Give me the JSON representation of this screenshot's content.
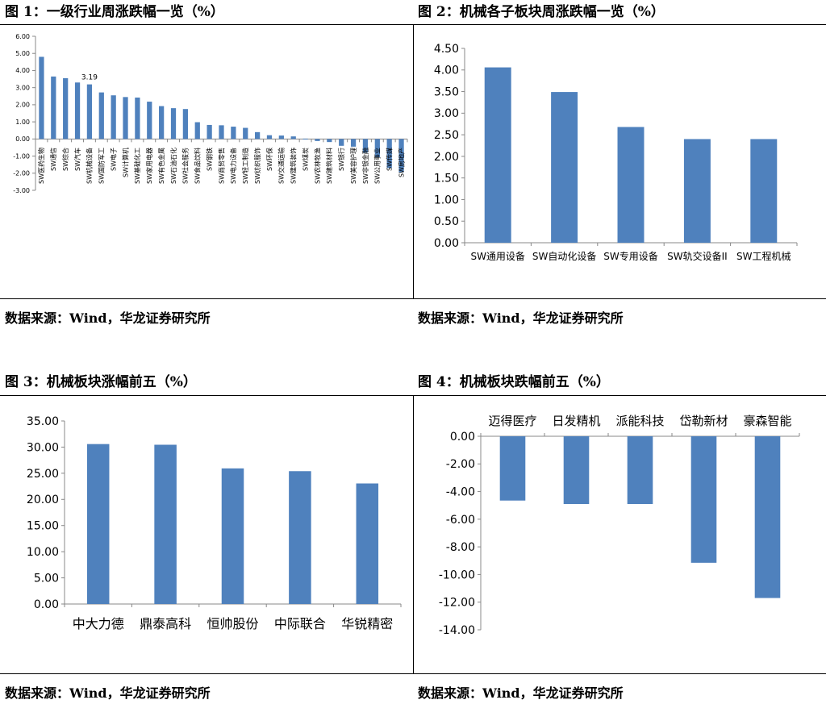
{
  "figures": [
    {
      "title": "图 1：一级行业周涨跌幅一览（%）",
      "source": "数据来源：Wind，华龙证券研究所"
    },
    {
      "title": "图 2：机械各子板块周涨跌幅一览（%）",
      "source": "数据来源：Wind，华龙证券研究所"
    },
    {
      "title": "图 3：机械板块涨幅前五（%）",
      "source": "数据来源：Wind，华龙证券研究所"
    },
    {
      "title": "图 4：机械板块跌幅前五（%）",
      "source": "数据来源：Wind，华龙证券研究所"
    }
  ],
  "chart_data": [
    {
      "type": "bar",
      "categories": [
        "SW医药生物",
        "SW通信",
        "SW综合",
        "SW汽车",
        "SW机械设备",
        "SW国防军工",
        "SW电子",
        "SW计算机",
        "SW基础化工",
        "SW家用电器",
        "SW有色金属",
        "SW石油石化",
        "SW社会服务",
        "SW食品饮料",
        "SW钢铁",
        "SW商贸零售",
        "SW电力设备",
        "SW轻工制造",
        "SW纺织服饰",
        "SW环保",
        "SW交通运输",
        "SW建筑装饰",
        "SW煤炭",
        "SW农林牧渔",
        "SW建筑材料",
        "SW银行",
        "SW美容护理",
        "SW非银金融",
        "SW公用事业",
        "SW传媒",
        "SW房地产"
      ],
      "values": [
        4.8,
        3.65,
        3.55,
        3.3,
        3.19,
        2.72,
        2.55,
        2.45,
        2.42,
        2.18,
        1.92,
        1.8,
        1.75,
        0.98,
        0.82,
        0.8,
        0.72,
        0.65,
        0.4,
        0.22,
        0.2,
        0.15,
        0.02,
        -0.12,
        -0.18,
        -0.4,
        -0.45,
        -0.8,
        -1.08,
        -1.7,
        -1.95
      ],
      "ylim": [
        -3,
        6
      ],
      "yticks": [
        "-3.00",
        "-2.00",
        "-1.00",
        "0.00",
        "1.00",
        "2.00",
        "3.00",
        "4.00",
        "5.00",
        "6.00"
      ],
      "annotations": [
        {
          "index": 4,
          "text": "3.19"
        }
      ],
      "grid": false,
      "color": "#4f81bd"
    },
    {
      "type": "bar",
      "categories": [
        "SW通用设备",
        "SW自动化设备",
        "SW专用设备",
        "SW轨交设备II",
        "SW工程机械"
      ],
      "values": [
        4.06,
        3.49,
        2.68,
        2.4,
        2.4
      ],
      "ylim": [
        0,
        4.5
      ],
      "yticks": [
        "0.00",
        "0.50",
        "1.00",
        "1.50",
        "2.00",
        "2.50",
        "3.00",
        "3.50",
        "4.00",
        "4.50"
      ],
      "grid": false,
      "color": "#4f81bd"
    },
    {
      "type": "bar",
      "categories": [
        "中大力德",
        "鼎泰高科",
        "恒帅股份",
        "中际联合",
        "华锐精密"
      ],
      "values": [
        30.58,
        30.45,
        25.93,
        25.4,
        23.05
      ],
      "ylim": [
        0,
        35
      ],
      "yticks": [
        "0.00",
        "5.00",
        "10.00",
        "15.00",
        "20.00",
        "25.00",
        "30.00",
        "35.00"
      ],
      "grid": false,
      "color": "#4f81bd"
    },
    {
      "type": "bar",
      "categories": [
        "迈得医疗",
        "日发精机",
        "派能科技",
        "岱勒新材",
        "豪森智能"
      ],
      "values": [
        -4.65,
        -4.9,
        -4.9,
        -9.15,
        -11.7
      ],
      "ylim": [
        -14,
        0
      ],
      "yticks": [
        "-14.00",
        "-12.00",
        "-10.00",
        "-8.00",
        "-6.00",
        "-4.00",
        "-2.00",
        "0.00"
      ],
      "grid": false,
      "color": "#4f81bd"
    }
  ]
}
